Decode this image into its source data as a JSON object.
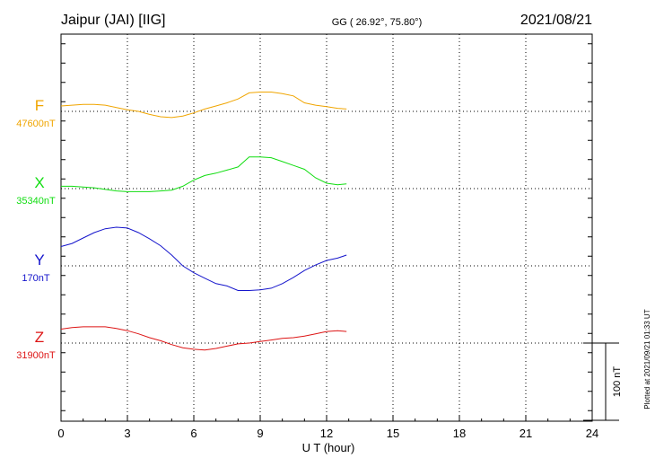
{
  "header": {
    "station": "Jaipur (JAI)  [IIG]",
    "coords": "GG ( 26.92°,  75.80°)",
    "date": "2021/08/21"
  },
  "footer": {
    "plotted": "Plotted at 2021/09/21 01:33 UT"
  },
  "chart_data": {
    "type": "line",
    "xlabel": "U T (hour)",
    "xlim": [
      0,
      24
    ],
    "xticks": [
      "0",
      "3",
      "6",
      "9",
      "12",
      "15",
      "18",
      "21",
      "24"
    ],
    "scale_bar_label": "100 nT",
    "scale_bar_nT": 100,
    "grid": true,
    "series": [
      {
        "name": "F",
        "baseline_label": "47600nT",
        "color": "#f0a500",
        "baseline_nT": 47600,
        "x": [
          0,
          0.5,
          1,
          1.5,
          2,
          2.5,
          3,
          3.5,
          4,
          4.5,
          5,
          5.5,
          6,
          6.5,
          7,
          7.5,
          8,
          8.5,
          9,
          9.5,
          10,
          10.5,
          11,
          11.5,
          12,
          12.5,
          12.9
        ],
        "values": [
          7,
          8,
          9,
          9,
          8,
          5,
          2,
          0,
          -4,
          -7,
          -8,
          -6,
          -2,
          3,
          7,
          11,
          16,
          24,
          25,
          25,
          23,
          20,
          11,
          8,
          6,
          4,
          3
        ]
      },
      {
        "name": "X",
        "baseline_label": "35340nT",
        "color": "#11dd11",
        "baseline_nT": 35340,
        "x": [
          0,
          0.5,
          1,
          1.5,
          2,
          2.5,
          3,
          3.5,
          4,
          4.5,
          5,
          5.5,
          6,
          6.5,
          7,
          7.5,
          8,
          8.5,
          9,
          9.5,
          10,
          10.5,
          11,
          11.5,
          12,
          12.5,
          12.9
        ],
        "values": [
          3,
          3,
          2,
          1,
          -1,
          -3,
          -4,
          -4,
          -4,
          -3,
          -2,
          3,
          11,
          17,
          20,
          24,
          28,
          41,
          41,
          40,
          35,
          30,
          25,
          14,
          7,
          5,
          6
        ]
      },
      {
        "name": "Y",
        "baseline_label": "170nT",
        "color": "#1515cc",
        "baseline_nT": 170,
        "x": [
          0,
          0.5,
          1,
          1.5,
          2,
          2.5,
          3,
          3.5,
          4,
          4.5,
          5,
          5.5,
          6,
          6.5,
          7,
          7.5,
          8,
          8.5,
          9,
          9.5,
          10,
          10.5,
          11,
          11.5,
          12,
          12.5,
          12.9
        ],
        "values": [
          25,
          29,
          36,
          43,
          48,
          50,
          49,
          43,
          35,
          26,
          14,
          0,
          -9,
          -16,
          -23,
          -26,
          -32,
          -32,
          -31,
          -29,
          -23,
          -15,
          -6,
          1,
          7,
          10,
          14
        ]
      },
      {
        "name": "Z",
        "baseline_label": "31900nT",
        "color": "#dd1515",
        "baseline_nT": 31900,
        "x": [
          0,
          0.5,
          1,
          1.5,
          2,
          2.5,
          3,
          3.5,
          4,
          4.5,
          5,
          5.5,
          6,
          6.5,
          7,
          7.5,
          8,
          8.5,
          9,
          9.5,
          10,
          10.5,
          11,
          11.5,
          12,
          12.5,
          12.9
        ],
        "values": [
          18,
          20,
          21,
          21,
          21,
          19,
          16,
          12,
          7,
          3,
          -2,
          -6,
          -8,
          -9,
          -7,
          -4,
          -1,
          0,
          2,
          4,
          6,
          7,
          9,
          12,
          15,
          16,
          15
        ]
      }
    ]
  }
}
